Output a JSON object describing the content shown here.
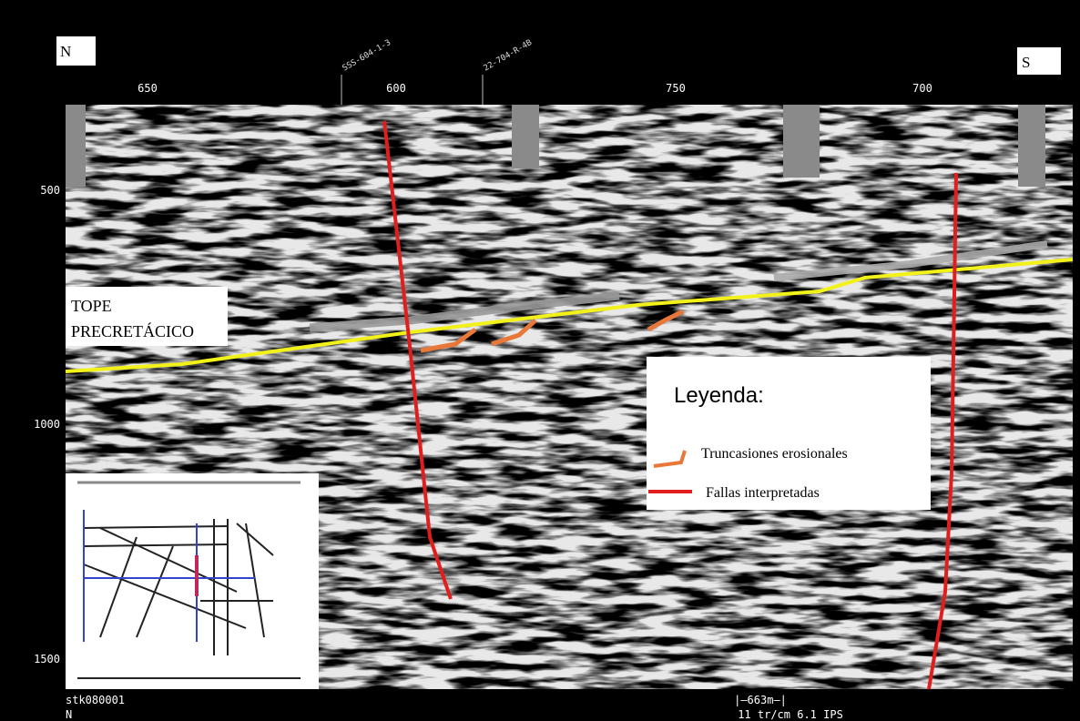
{
  "header": {
    "north": "N",
    "south": "S"
  },
  "top_axis": {
    "ticks": [
      "650",
      "600",
      "750",
      "700"
    ]
  },
  "wells": [
    "SSS-604-1-3",
    "22-704-R-4B"
  ],
  "left_axis": {
    "ticks": [
      "500",
      "1000",
      "1500"
    ]
  },
  "labels": {
    "horizon_line1": "TOPE",
    "horizon_line2": "PRECRETÁCICO"
  },
  "legend": {
    "title": "Leyenda:",
    "items": [
      "Truncasiones erosionales",
      "Fallas interpretadas"
    ]
  },
  "footer": {
    "line": "stk080001",
    "direction": "N",
    "scale": "|—663m—|",
    "info": "11 tr/cm 6.1 IPS"
  }
}
